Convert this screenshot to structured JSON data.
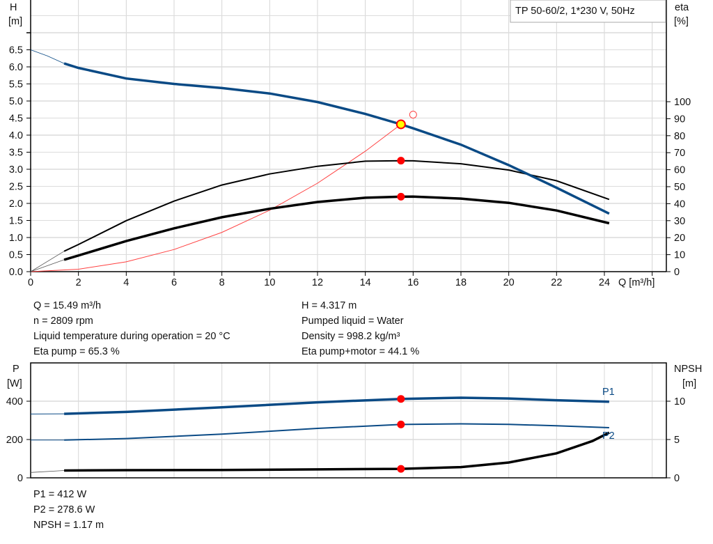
{
  "chart_data": [
    {
      "type": "line",
      "title_box": "TP 50-60/2, 1*230 V, 50Hz",
      "xlabel": "Q [m³/h]",
      "ylabel_left": [
        "H",
        "[m]"
      ],
      "ylabel_right": [
        "eta",
        "[%]"
      ],
      "xlim": [
        0,
        26.6
      ],
      "ylim_left": [
        0,
        8
      ],
      "ylim_right": [
        0,
        160
      ],
      "x_ticks": [
        "0",
        "2",
        "4",
        "6",
        "8",
        "10",
        "12",
        "14",
        "16",
        "18",
        "20",
        "22",
        "24"
      ],
      "y_ticks_left": [
        "0.0",
        "0.5",
        "1.0",
        "1.5",
        "2.0",
        "2.5",
        "3.0",
        "3.5",
        "4.0",
        "4.5",
        "5.0",
        "5.5",
        "6.0",
        "6.5"
      ],
      "y_ticks_right": [
        "0",
        "10",
        "20",
        "30",
        "40",
        "50",
        "60",
        "70",
        "80",
        "90",
        "100"
      ],
      "grid": true,
      "colors": {
        "head": "#0a4a85",
        "eta": "#000000",
        "system": "#ff4040",
        "point": "#ff0000",
        "duty_fill": "#ffff00"
      },
      "series": [
        {
          "key": "H",
          "axis": "left",
          "thin_x": [
            0,
            0.7,
            1.4
          ],
          "thin_y": [
            6.5,
            6.32,
            6.1
          ],
          "x": [
            1.4,
            2,
            4,
            6,
            8,
            10,
            12,
            14,
            15.49,
            16,
            18,
            20,
            22,
            24.2
          ],
          "y": [
            6.1,
            5.97,
            5.66,
            5.5,
            5.38,
            5.22,
            4.97,
            4.62,
            4.317,
            4.2,
            3.72,
            3.12,
            2.46,
            1.7
          ]
        },
        {
          "key": "eta_pump",
          "axis": "right",
          "thin_x": [
            0,
            1.4
          ],
          "thin_y": [
            0,
            12
          ],
          "x": [
            1.4,
            2,
            4,
            6,
            8,
            10,
            12,
            14,
            15.49,
            16,
            18,
            20,
            22,
            24.2
          ],
          "y": [
            12,
            16,
            30,
            41.5,
            51,
            57.5,
            62,
            65,
            65.3,
            65.2,
            63.5,
            59.8,
            53.5,
            42.5
          ]
        },
        {
          "key": "eta_pump_motor",
          "axis": "right",
          "thin_x": [
            0,
            1.4
          ],
          "thin_y": [
            0,
            7
          ],
          "x": [
            1.4,
            2,
            4,
            6,
            8,
            10,
            12,
            14,
            15.49,
            16,
            18,
            20,
            22,
            24.2
          ],
          "y": [
            7,
            9.5,
            18,
            25.5,
            32,
            37,
            41,
            43.5,
            44.1,
            44.2,
            43,
            40.5,
            36,
            28.5
          ]
        },
        {
          "key": "system_curve",
          "axis": "left",
          "x": [
            0,
            2,
            4,
            6,
            8,
            10,
            12,
            14,
            15.49
          ],
          "y": [
            0,
            0.072,
            0.288,
            0.648,
            1.152,
            1.8,
            2.592,
            3.528,
            4.317
          ]
        }
      ],
      "duty_point": {
        "q": 15.49,
        "h": 4.317,
        "eta_pump": 65.3,
        "eta_pump_motor": 44.1
      },
      "requested_point": {
        "q": 16,
        "h": 4.6
      }
    },
    {
      "type": "line",
      "ylabel_left": [
        "P",
        "[W]"
      ],
      "ylabel_right": [
        "NPSH",
        "[m]"
      ],
      "xlim": [
        0,
        26.6
      ],
      "ylim_left": [
        0,
        600
      ],
      "ylim_right": [
        0,
        15
      ],
      "y_ticks_left": [
        "0",
        "200",
        "400"
      ],
      "y_ticks_right": [
        "0",
        "5",
        "10"
      ],
      "grid": true,
      "series": [
        {
          "name": "P1",
          "axis": "left",
          "color": "#0a4a85",
          "thin_x": [
            0,
            1.4
          ],
          "thin_y": [
            333,
            334
          ],
          "x": [
            1.4,
            4,
            8,
            12,
            15.49,
            18,
            20,
            22,
            24.2
          ],
          "y": [
            334,
            344,
            368,
            394,
            412,
            418,
            414,
            405,
            397
          ]
        },
        {
          "name": "P2",
          "axis": "left",
          "color": "#0a4a85",
          "thin_x": [
            0,
            1.4
          ],
          "thin_y": [
            197,
            197
          ],
          "x": [
            1.4,
            4,
            8,
            12,
            15.49,
            18,
            20,
            22,
            24.2
          ],
          "y": [
            197,
            205,
            228,
            258,
            278.6,
            282,
            279,
            272,
            262
          ]
        },
        {
          "key": "NPSH",
          "axis": "right",
          "color": "#000000",
          "thin_x": [
            0,
            1.4
          ],
          "thin_y": [
            0.7,
            0.95
          ],
          "x": [
            1.4,
            4,
            8,
            12,
            15.49,
            18,
            20,
            22,
            23.5,
            24.2
          ],
          "y": [
            0.95,
            1.0,
            1.03,
            1.1,
            1.17,
            1.4,
            2.0,
            3.2,
            4.8,
            5.9
          ]
        }
      ],
      "duty_point": {
        "q": 15.49,
        "p1": 412,
        "p2": 278.6,
        "npsh": 1.17
      }
    }
  ],
  "info": {
    "left": [
      "Q = 15.49 m³/h",
      "n = 2809 rpm",
      "Liquid temperature during operation = 20 °C",
      "Eta pump = 65.3 %"
    ],
    "right": [
      "H = 4.317 m",
      "Pumped liquid = Water",
      "Density = 998.2 kg/m³",
      "Eta pump+motor = 44.1 %"
    ],
    "bottom": [
      "P1 = 412 W",
      "P2 = 278.6 W",
      "NPSH = 1.17 m"
    ]
  }
}
